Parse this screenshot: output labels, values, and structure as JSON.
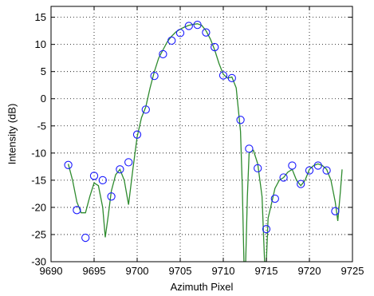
{
  "chart_data": {
    "type": "scatter",
    "xlabel": "Azimuth Pixel",
    "ylabel": "Intensity (dB)",
    "xlim": [
      9690,
      9725
    ],
    "ylim": [
      -30,
      17
    ],
    "x_ticks": [
      9690,
      9695,
      9700,
      9705,
      9710,
      9715,
      9720,
      9725
    ],
    "y_ticks": [
      -30,
      -25,
      -20,
      -15,
      -10,
      -5,
      0,
      5,
      10,
      15
    ],
    "grid": "dotted",
    "colors": {
      "markers": "#1a1aff",
      "line": "#2e8b2e",
      "grid": "#000000"
    },
    "series": [
      {
        "role": "markers",
        "marker": "open-circle",
        "x": [
          9692,
          9693,
          9694,
          9695,
          9696,
          9697,
          9698,
          9699,
          9700,
          9701,
          9702,
          9703,
          9704,
          9705,
          9706,
          9707,
          9708,
          9709,
          9710,
          9711,
          9712,
          9713,
          9714,
          9715,
          9716,
          9717,
          9718,
          9719,
          9720,
          9721,
          9722,
          9723
        ],
        "y": [
          -12.2,
          -20.5,
          -25.6,
          -14.2,
          -15,
          -18,
          -13,
          -11.7,
          -6.6,
          -2,
          4.2,
          8.2,
          10.7,
          12.1,
          13.4,
          13.6,
          12.2,
          9.5,
          4.3,
          3.8,
          -3.9,
          -9.2,
          -12.8,
          -24,
          -18.4,
          -14.5,
          -12.3,
          -15.7,
          -13.2,
          -12.3,
          -13.2,
          -20.7
        ]
      },
      {
        "role": "line",
        "x": [
          9692,
          9692.5,
          9693,
          9693.5,
          9694,
          9694.5,
          9695,
          9695.5,
          9696,
          9696.3,
          9696.6,
          9697,
          9697.5,
          9698,
          9698.5,
          9699,
          9699.5,
          9700,
          9700.5,
          9701,
          9701.5,
          9702,
          9702.5,
          9703,
          9703.5,
          9704,
          9704.5,
          9705,
          9705.5,
          9706,
          9706.5,
          9707,
          9707.5,
          9708,
          9708.5,
          9709,
          9709.5,
          9710,
          9710.5,
          9711,
          9711.5,
          9712,
          9712.2,
          9712.4,
          9712.6,
          9712.8,
          9713,
          9713.5,
          9714,
          9714.5,
          9714.8,
          9715,
          9715.2,
          9715.5,
          9716,
          9716.5,
          9717,
          9717.5,
          9718,
          9718.5,
          9719,
          9719.5,
          9720,
          9720.5,
          9721,
          9721.5,
          9722,
          9722.5,
          9723,
          9723.3,
          9723.6,
          9723.8
        ],
        "y": [
          -12,
          -15,
          -19,
          -21,
          -21,
          -18,
          -15.5,
          -16,
          -20,
          -25.5,
          -22,
          -17,
          -14,
          -13,
          -15,
          -19.5,
          -13,
          -7,
          -3.5,
          -1.5,
          2,
          5,
          7.5,
          9,
          10.5,
          11.5,
          12.3,
          12.8,
          13.2,
          13.5,
          13.7,
          13.8,
          13.5,
          12.5,
          11,
          9,
          6.5,
          4.5,
          3.8,
          4,
          2,
          -6,
          -16,
          -30,
          -30,
          -18,
          -10,
          -9.5,
          -12,
          -18,
          -30,
          -30,
          -22,
          -20,
          -16.5,
          -15,
          -14.5,
          -13.5,
          -13,
          -15,
          -16,
          -15,
          -13,
          -12.3,
          -12,
          -12.3,
          -13,
          -15,
          -19,
          -22.5,
          -17,
          -13
        ]
      }
    ]
  }
}
